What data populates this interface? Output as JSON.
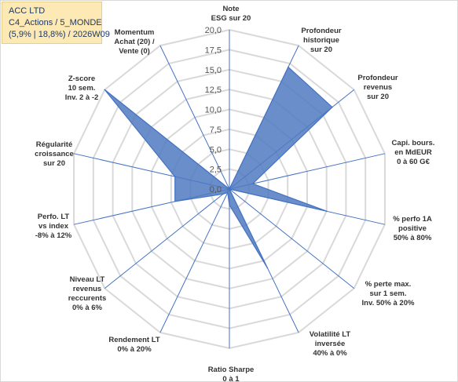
{
  "info": {
    "company": "ACC LTD",
    "universe": "C4_Actions / 5_MONDE",
    "performance": "(5,9% | 18,8%) / 2026W09"
  },
  "chart_data": {
    "type": "radar",
    "series_color": "#4472c4",
    "series_fill": "#4f7ac0",
    "grid_color": "#d9d9d9",
    "axis_color": "#4472c4",
    "rlim": [
      0,
      20
    ],
    "ticks": [
      "0,0",
      "2,5",
      "5,0",
      "7,5",
      "10,0",
      "12,5",
      "15,0",
      "17,5",
      "20,0"
    ],
    "tick_values": [
      0,
      2.5,
      5,
      7.5,
      10,
      12.5,
      15,
      17.5,
      20
    ],
    "axes": [
      {
        "lines": [
          "Note",
          "ESG sur 20"
        ],
        "value": 0
      },
      {
        "lines": [
          "Profondeur",
          "historique",
          "sur 20"
        ],
        "value": 17
      },
      {
        "lines": [
          "Profondeur",
          "revenus",
          "sur 20"
        ],
        "value": 16.5
      },
      {
        "lines": [
          "Capi. bours.",
          "en MdEUR",
          "0 à 60 G€"
        ],
        "value": 3
      },
      {
        "lines": [
          "% perfo 1A",
          "positive",
          "50% à 80%"
        ],
        "value": 12.5
      },
      {
        "lines": [
          "% perte max.",
          "sur 1 sem.",
          "Inv. 50% à 20%"
        ],
        "value": 0
      },
      {
        "lines": [
          "Volatilité LT",
          "inversée",
          "40% à 0%"
        ],
        "value": 11
      },
      {
        "lines": [
          "Ratio Sharpe",
          "0 à 1"
        ],
        "value": 2
      },
      {
        "lines": [
          "Rendement LT",
          "0% à 20%"
        ],
        "value": 0.5
      },
      {
        "lines": [
          "Niveau LT",
          "revenus",
          "reccurents",
          "0% à 6%"
        ],
        "value": 1
      },
      {
        "lines": [
          "Perfo. LT",
          "vs index",
          "-8% à 12%"
        ],
        "value": 7
      },
      {
        "lines": [
          "Régularité",
          "croissance",
          "sur 20"
        ],
        "value": 7
      },
      {
        "lines": [
          "Z-score",
          "10 sem.",
          "Inv. 2 à -2"
        ],
        "value": 20
      },
      {
        "lines": [
          "Momentum",
          "Achat (20) /",
          "Vente (0)"
        ],
        "value": 0
      }
    ]
  }
}
